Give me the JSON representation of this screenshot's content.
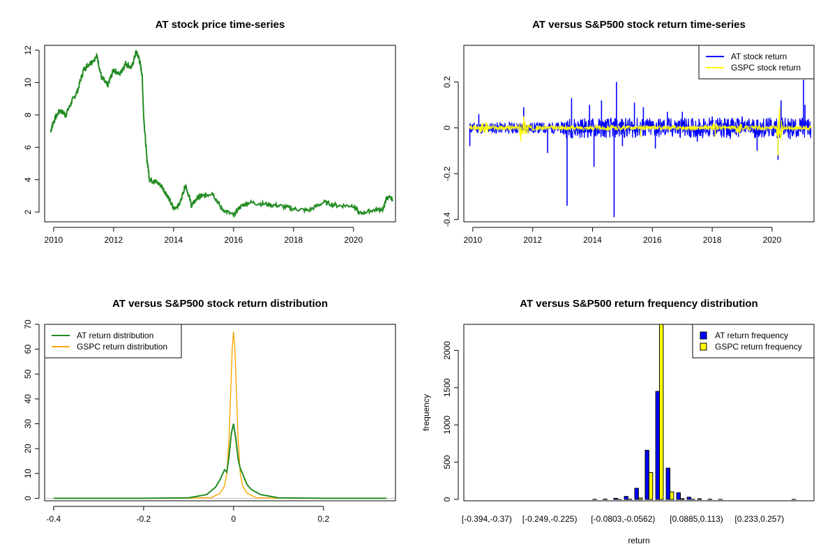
{
  "chart_data": [
    {
      "id": "price",
      "type": "line",
      "title": "AT stock price time-series",
      "xlabel": "",
      "ylabel": "",
      "xlim": [
        2009.7,
        2021.4
      ],
      "ylim": [
        1.4,
        12.3
      ],
      "xticks": [
        2010,
        2012,
        2014,
        2016,
        2018,
        2020
      ],
      "yticks": [
        2,
        4,
        6,
        8,
        10,
        12
      ],
      "series": [
        {
          "color": "#228B22",
          "x": [
            2009.9,
            2010.0,
            2010.2,
            2010.4,
            2010.6,
            2010.8,
            2011.0,
            2011.2,
            2011.45,
            2011.6,
            2011.8,
            2012.0,
            2012.2,
            2012.4,
            2012.6,
            2012.75,
            2012.85,
            2012.95,
            2013.0,
            2013.1,
            2013.2,
            2013.4,
            2013.6,
            2013.8,
            2014.0,
            2014.2,
            2014.4,
            2014.6,
            2014.8,
            2015.0,
            2015.3,
            2015.6,
            2016.0,
            2016.2,
            2016.5,
            2017.0,
            2017.5,
            2018.0,
            2018.5,
            2019.0,
            2019.5,
            2020.0,
            2020.2,
            2020.6,
            2021.0,
            2021.1,
            2021.3
          ],
          "values": [
            7.0,
            7.6,
            8.3,
            8.0,
            8.8,
            9.5,
            10.8,
            11.2,
            11.6,
            10.3,
            9.8,
            10.8,
            10.5,
            11.2,
            10.9,
            11.9,
            11.5,
            10.5,
            8.0,
            5.5,
            4.0,
            3.9,
            3.6,
            3.0,
            2.2,
            2.5,
            3.7,
            2.4,
            2.9,
            3.0,
            3.2,
            2.2,
            1.8,
            2.3,
            2.6,
            2.5,
            2.4,
            2.2,
            2.1,
            2.6,
            2.4,
            2.4,
            1.9,
            2.1,
            2.2,
            2.9,
            2.8
          ]
        }
      ]
    },
    {
      "id": "returns",
      "type": "line",
      "title": "AT versus S&P500 stock return time-series",
      "xlabel": "",
      "ylabel": "",
      "xlim": [
        2009.7,
        2021.4
      ],
      "ylim": [
        -0.41,
        0.36
      ],
      "xticks": [
        2010,
        2012,
        2014,
        2016,
        2018,
        2020
      ],
      "yticks": [
        -0.4,
        -0.2,
        0.0,
        0.2
      ],
      "legend": "top-right",
      "series": [
        {
          "name": "AT stock return",
          "color": "#0000FF",
          "spikes": [
            [
              2009.9,
              -0.08
            ],
            [
              2010.2,
              0.06
            ],
            [
              2011.7,
              0.09
            ],
            [
              2012.5,
              -0.11
            ],
            [
              2013.15,
              -0.34
            ],
            [
              2013.3,
              0.13
            ],
            [
              2013.9,
              0.1
            ],
            [
              2014.05,
              -0.17
            ],
            [
              2014.3,
              0.12
            ],
            [
              2014.72,
              -0.39
            ],
            [
              2014.8,
              0.2
            ],
            [
              2015.0,
              -0.08
            ],
            [
              2015.4,
              0.11
            ],
            [
              2015.7,
              0.09
            ],
            [
              2016.1,
              -0.09
            ],
            [
              2016.5,
              0.07
            ],
            [
              2017.0,
              0.07
            ],
            [
              2017.5,
              -0.06
            ],
            [
              2018.0,
              0.05
            ],
            [
              2019.0,
              0.05
            ],
            [
              2019.5,
              -0.1
            ],
            [
              2020.2,
              -0.14
            ],
            [
              2020.3,
              0.12
            ],
            [
              2020.6,
              -0.05
            ],
            [
              2021.05,
              0.21
            ],
            [
              2021.1,
              0.1
            ]
          ]
        },
        {
          "name": "GSPC stock return",
          "color": "#FFFF00",
          "spikes": [
            [
              2010.3,
              0.02
            ],
            [
              2011.6,
              -0.06
            ],
            [
              2011.7,
              0.05
            ],
            [
              2015.6,
              -0.04
            ],
            [
              2018.1,
              -0.04
            ],
            [
              2018.9,
              -0.03
            ],
            [
              2020.2,
              -0.12
            ],
            [
              2020.25,
              0.09
            ]
          ]
        }
      ]
    },
    {
      "id": "density",
      "type": "line",
      "title": "AT versus S&P500 stock return distribution",
      "xlabel": "",
      "ylabel": "",
      "xlim": [
        -0.42,
        0.36
      ],
      "ylim": [
        -1,
        70
      ],
      "xticks": [
        -0.4,
        -0.2,
        0.0,
        0.2
      ],
      "yticks": [
        0,
        10,
        20,
        30,
        40,
        50,
        60,
        70
      ],
      "legend": "top-left",
      "series": [
        {
          "name": "AT return distribution",
          "color": "#228B22",
          "x": [
            -0.4,
            -0.2,
            -0.1,
            -0.06,
            -0.04,
            -0.03,
            -0.02,
            -0.015,
            -0.01,
            -0.005,
            0.0,
            0.005,
            0.01,
            0.015,
            0.02,
            0.03,
            0.04,
            0.06,
            0.1,
            0.2,
            0.34
          ],
          "values": [
            0,
            0,
            0.2,
            1.5,
            4.5,
            7.5,
            11.5,
            10.5,
            17,
            26,
            30,
            24,
            16,
            12,
            10,
            5.5,
            3.5,
            1.5,
            0.2,
            0,
            0
          ]
        },
        {
          "name": "GSPC return distribution",
          "color": "#FFA500",
          "x": [
            -0.12,
            -0.05,
            -0.03,
            -0.02,
            -0.015,
            -0.01,
            -0.006,
            -0.003,
            0.0,
            0.003,
            0.006,
            0.01,
            0.015,
            0.02,
            0.03,
            0.05,
            0.1
          ],
          "values": [
            0,
            0.3,
            2,
            5,
            10,
            24,
            45,
            60,
            67,
            60,
            45,
            24,
            10,
            5,
            2,
            0.3,
            0
          ]
        }
      ]
    },
    {
      "id": "freq",
      "type": "bar",
      "title": "AT versus S&P500 return frequency distribution",
      "xlabel": "return",
      "ylabel": "frequency",
      "ylim": [
        0,
        2350
      ],
      "yticks": [
        0,
        500,
        1000,
        1500,
        2000
      ],
      "tick_labels": [
        "[-0.394,-0.37)",
        "[-0.249,-0.225)",
        "[-0.0803,-0.0562)",
        "[0.0885,0.113)",
        "[0.233,0.257)"
      ],
      "tick_label_bins": [
        0,
        6,
        13,
        20,
        26
      ],
      "legend": "top-right",
      "bin_count": 31,
      "series": [
        {
          "name": "AT return frequency",
          "color": "#0000FF",
          "values": [
            0,
            0,
            0,
            0,
            0,
            0,
            0,
            0,
            0,
            0,
            0,
            2,
            5,
            15,
            40,
            150,
            660,
            1450,
            420,
            90,
            30,
            8,
            3,
            1,
            0,
            0,
            0,
            0,
            0,
            0,
            1
          ]
        },
        {
          "name": "GSPC return frequency",
          "color": "#FFFF00",
          "values": [
            0,
            0,
            0,
            0,
            0,
            0,
            0,
            0,
            0,
            0,
            0,
            0,
            0,
            1,
            3,
            20,
            360,
            2350,
            100,
            10,
            2,
            0,
            0,
            0,
            0,
            0,
            0,
            0,
            0,
            0,
            0
          ]
        }
      ]
    }
  ]
}
